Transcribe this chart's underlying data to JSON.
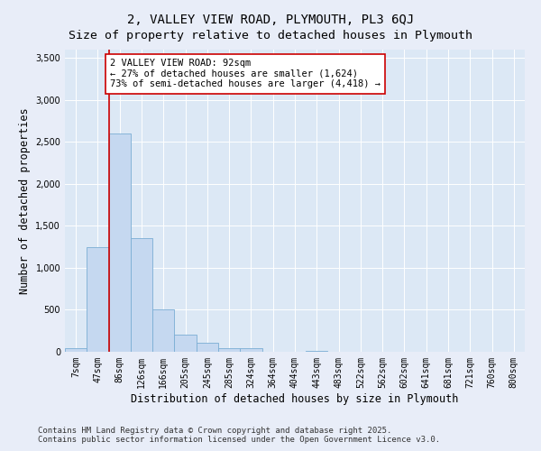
{
  "title": "2, VALLEY VIEW ROAD, PLYMOUTH, PL3 6QJ",
  "subtitle": "Size of property relative to detached houses in Plymouth",
  "xlabel": "Distribution of detached houses by size in Plymouth",
  "ylabel": "Number of detached properties",
  "categories": [
    "7sqm",
    "47sqm",
    "86sqm",
    "126sqm",
    "166sqm",
    "205sqm",
    "245sqm",
    "285sqm",
    "324sqm",
    "364sqm",
    "404sqm",
    "443sqm",
    "483sqm",
    "522sqm",
    "562sqm",
    "602sqm",
    "641sqm",
    "681sqm",
    "721sqm",
    "760sqm",
    "800sqm"
  ],
  "values": [
    40,
    1250,
    2600,
    1350,
    500,
    200,
    110,
    40,
    40,
    0,
    0,
    15,
    0,
    0,
    0,
    0,
    0,
    0,
    0,
    0,
    0
  ],
  "bar_color": "#c5d8f0",
  "bar_edge_color": "#7aadd4",
  "vline_x_index": 2,
  "vline_color": "#cc0000",
  "annotation_text": "2 VALLEY VIEW ROAD: 92sqm\n← 27% of detached houses are smaller (1,624)\n73% of semi-detached houses are larger (4,418) →",
  "annotation_box_facecolor": "#ffffff",
  "annotation_box_edgecolor": "#cc0000",
  "ylim": [
    0,
    3600
  ],
  "yticks": [
    0,
    500,
    1000,
    1500,
    2000,
    2500,
    3000,
    3500
  ],
  "bg_color": "#e8edf8",
  "plot_bg_color": "#dce8f5",
  "grid_color": "#ffffff",
  "footer_text": "Contains HM Land Registry data © Crown copyright and database right 2025.\nContains public sector information licensed under the Open Government Licence v3.0.",
  "title_fontsize": 10,
  "label_fontsize": 8.5,
  "tick_fontsize": 7,
  "annot_fontsize": 7.5,
  "footer_fontsize": 6.5
}
